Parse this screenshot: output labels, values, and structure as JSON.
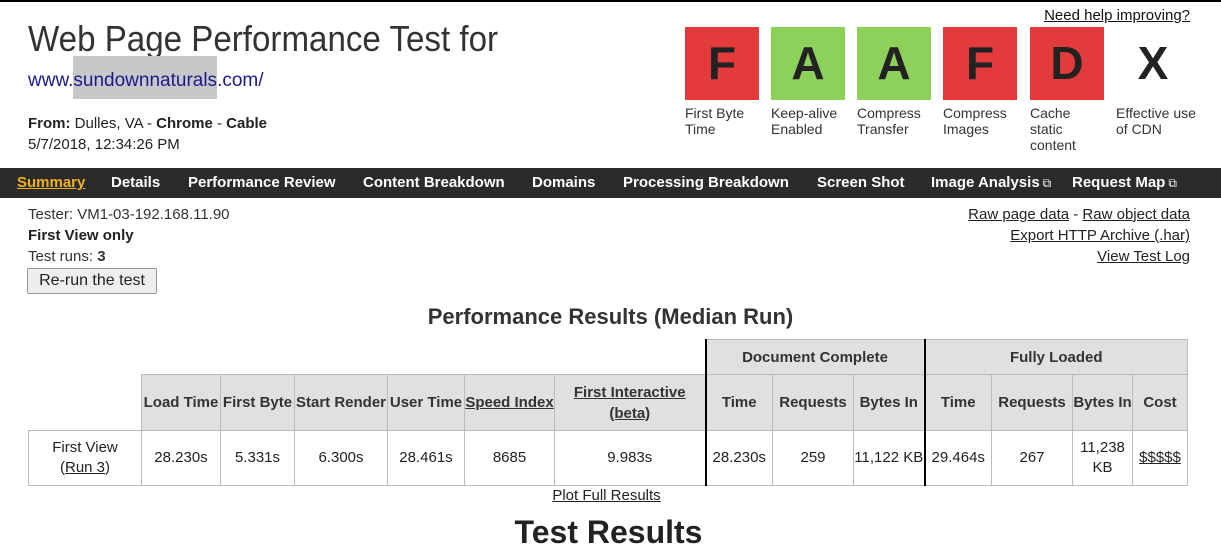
{
  "header": {
    "title": "Web Page Performance Test for",
    "url_prefix": "www.",
    "url_masked": "sundownnaturals",
    "url_suffix": ".com/",
    "from_label": "From:",
    "location": "Dulles, VA",
    "browser": "Chrome",
    "connection": "Cable",
    "dash": "-",
    "datetime": "5/7/2018, 12:34:26 PM",
    "help_link": "Need help improving?"
  },
  "grades": [
    {
      "letter": "F",
      "label": "First Byte Time",
      "status": "red"
    },
    {
      "letter": "A",
      "label": "Keep-alive Enabled",
      "status": "green"
    },
    {
      "letter": "A",
      "label": "Compress Transfer",
      "status": "green"
    },
    {
      "letter": "F",
      "label": "Compress Images",
      "status": "red"
    },
    {
      "letter": "D",
      "label": "Cache static content",
      "status": "red"
    },
    {
      "letter": "X",
      "label": "Effective use of CDN",
      "status": "none"
    }
  ],
  "colors": {
    "grade_red": "#e33b3b",
    "grade_green": "#8ed15a",
    "nav_bg": "#2b2b2b",
    "nav_active": "#f3b21c"
  },
  "nav": [
    {
      "label": "Summary",
      "active": true
    },
    {
      "label": "Details"
    },
    {
      "label": "Performance Review"
    },
    {
      "label": "Content Breakdown"
    },
    {
      "label": "Domains"
    },
    {
      "label": "Processing Breakdown"
    },
    {
      "label": "Screen Shot"
    },
    {
      "label": "Image Analysis",
      "icon": "external-link-icon"
    },
    {
      "label": "Request Map",
      "icon": "external-link-icon"
    }
  ],
  "info": {
    "tester_label": "Tester:",
    "tester": "VM1-03-192.168.11.90",
    "view_mode": "First View only",
    "runs_label": "Test runs:",
    "runs": "3",
    "rerun_button": "Re-run the test"
  },
  "links": {
    "raw_page": "Raw page data",
    "separator": "-",
    "raw_object": "Raw object data",
    "export_har": "Export HTTP Archive (.har)",
    "view_log": "View Test Log"
  },
  "results": {
    "title": "Performance Results (Median Run)",
    "group_document": "Document Complete",
    "group_fully": "Fully Loaded",
    "columns": {
      "load_time": "Load Time",
      "first_byte": "First Byte",
      "start_render": "Start Render",
      "user_time": "User Time",
      "speed_index": "Speed Index",
      "first_interactive": "First Interactive (beta)",
      "dc_time": "Time",
      "dc_requests": "Requests",
      "dc_bytes": "Bytes In",
      "fl_time": "Time",
      "fl_requests": "Requests",
      "fl_bytes": "Bytes In",
      "fl_cost": "Cost"
    },
    "row": {
      "label": "First View",
      "run_link": "Run 3",
      "load_time": "28.230s",
      "first_byte": "5.331s",
      "start_render": "6.300s",
      "user_time": "28.461s",
      "speed_index": "8685",
      "first_interactive": "9.983s",
      "dc_time": "28.230s",
      "dc_requests": "259",
      "dc_bytes": "11,122 KB",
      "fl_time": "29.464s",
      "fl_requests": "267",
      "fl_bytes": "11,238 KB",
      "fl_cost": "$$$$$"
    },
    "plot_link": "Plot Full Results"
  },
  "test_results_heading": "Test Results"
}
